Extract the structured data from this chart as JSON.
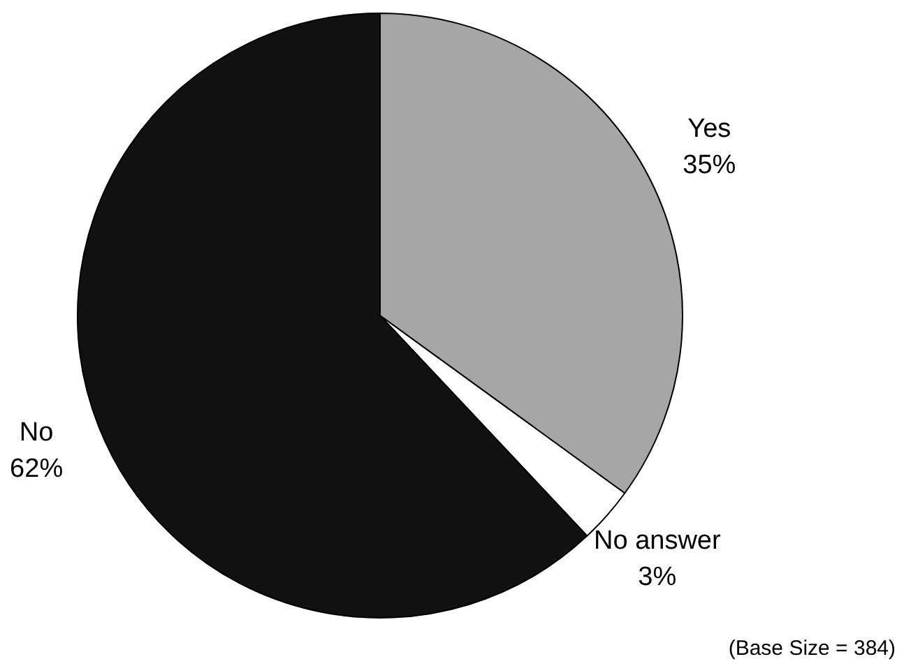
{
  "chart_data": {
    "type": "pie",
    "categories": [
      "Yes",
      "No answer",
      "No"
    ],
    "values": [
      35,
      3,
      62
    ],
    "colors": [
      "#a6a6a6",
      "#ffffff",
      "#111111"
    ],
    "value_labels": [
      "35%",
      "3%",
      "62%"
    ],
    "legend": false,
    "annotations": [
      "(Base Size = 384)"
    ]
  }
}
